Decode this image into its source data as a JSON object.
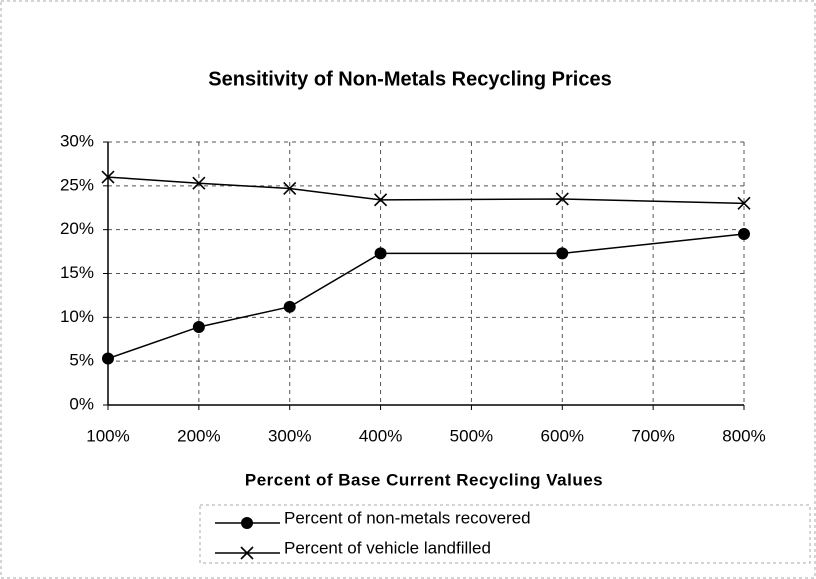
{
  "chart_data": {
    "type": "line",
    "title": "Sensitivity of Non-Metals Recycling Prices",
    "x_label": "Percent of Base Current Recycling Values",
    "x": [
      100,
      200,
      300,
      400,
      600,
      800
    ],
    "series": [
      {
        "name": "Percent of non-metals recovered",
        "color": "#000000",
        "marker": "circle",
        "values": [
          5.3,
          8.9,
          11.2,
          17.3,
          17.3,
          19.5
        ]
      },
      {
        "name": "Percent of vehicle landfilled",
        "color": "#000000",
        "marker": "x",
        "values": [
          26.0,
          25.3,
          24.7,
          23.4,
          23.5,
          23.0
        ]
      }
    ],
    "xlim": [
      100,
      800
    ],
    "xticks": [
      {
        "value": 100,
        "label": "100%"
      },
      {
        "value": 200,
        "label": "200%"
      },
      {
        "value": 300,
        "label": "300%"
      },
      {
        "value": 400,
        "label": "400%"
      },
      {
        "value": 500,
        "label": "500%"
      },
      {
        "value": 600,
        "label": "600%"
      },
      {
        "value": 700,
        "label": "700%"
      },
      {
        "value": 800,
        "label": "800%"
      }
    ],
    "ylim": [
      0,
      30
    ],
    "yticks": [
      {
        "value": 0,
        "label": "0%"
      },
      {
        "value": 5,
        "label": "5%"
      },
      {
        "value": 10,
        "label": "10%"
      },
      {
        "value": 15,
        "label": "15%"
      },
      {
        "value": 20,
        "label": "20%"
      },
      {
        "value": 25,
        "label": "25%"
      },
      {
        "value": 30,
        "label": "30%"
      }
    ],
    "grid": true
  }
}
